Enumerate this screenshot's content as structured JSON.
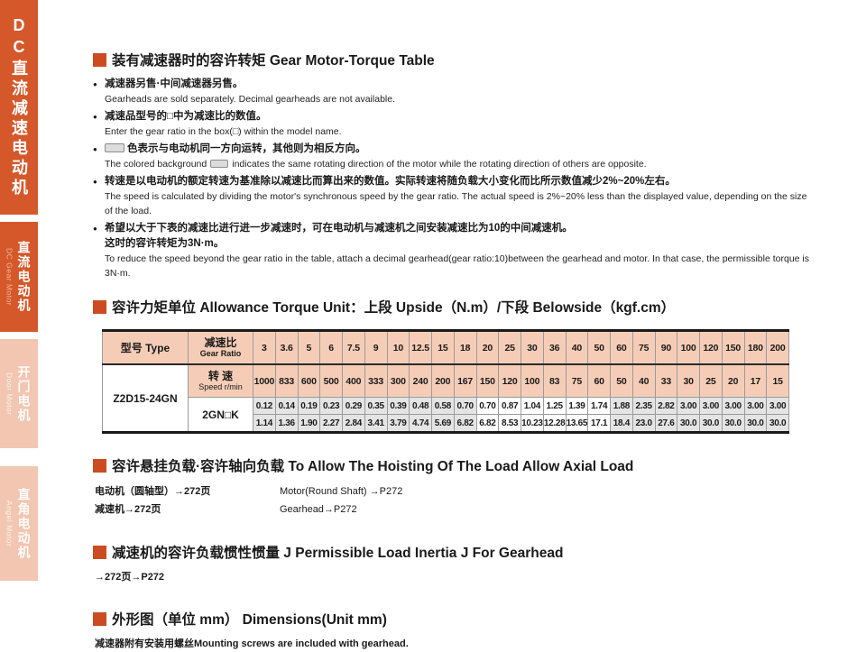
{
  "colors": {
    "accent": "#cc4b21",
    "sidebar_dark": "#d4582a",
    "sidebar_light": "#f2c6b1",
    "table_header_pink": "#f5cdb7",
    "same_direction_cell_gray": "#e4e4e4"
  },
  "sidebar": {
    "main_tab": "DC直流减速电动机",
    "tabs": [
      {
        "cn": "直流电动机",
        "en": "DC Gear Motor",
        "active": true
      },
      {
        "cn": "开门电机",
        "en": "Door Motor",
        "active": false
      },
      {
        "cn": "直角电动机",
        "en": "Angel Motor",
        "active": false
      }
    ]
  },
  "sections": {
    "gear_motor_torque": {
      "heading_cn": "装有减速器时的容许转矩",
      "heading_en": " Gear Motor-Torque Table",
      "bullets": [
        {
          "cn": "减速器另售·中间减速器另售。",
          "en": "Gearheads are sold separately. Decimal gearheads are not available."
        },
        {
          "cn": "减速品型号的□中为减速比的数值。",
          "en": "Enter the gear ratio in the box(□) within the model name."
        },
        {
          "cn_after_box": "色表示与电动机同一方向运转，其他则为相反方向。",
          "en_before_box": "The colored background",
          "en_after_box": "indicates the same rotating direction of the motor while the rotating direction of others are opposite."
        },
        {
          "cn": "转速是以电动机的额定转速为基准除以减速比而算出来的数值。实际转速将随负载大小变化而比所示数值减少2%~20%左右。",
          "en": "The speed is calculated by dividing the motor's synchronous speed by the gear ratio. The actual speed is 2%~20% less than the displayed value, depending on the size of the load."
        },
        {
          "cn": "希望以大于下表的减速比进行进一步减速时，可在电动机与减速机之间安装减速比为10的中间减速机。",
          "cn2": "这时的容许转矩为3N·m。",
          "en": "To reduce the speed beyond the gear ratio in the table, attach a decimal gearhead(gear ratio:10)between the gearhead and motor. In that case, the permissible torque is 3N·m."
        }
      ]
    },
    "torque_unit": {
      "heading_cn": "容许力矩单位",
      "heading_rest": " Allowance Torque Unit：上段 Upside（N.m）/下段 Belowside（kgf.cm）"
    },
    "hoisting": {
      "heading_cn": "容许悬挂负载·容许轴向负载",
      "heading_en": " To Allow The Hoisting Of The Load Allow Axial Load",
      "rows": [
        {
          "cn": "电动机（圆轴型）→272页",
          "en": "Motor(Round Shaft) →P272"
        },
        {
          "cn": "减速机→272页",
          "en": "Gearhead→P272"
        }
      ]
    },
    "inertia": {
      "heading_cn": "减速机的容许负载惯性惯量 J",
      "heading_en": "  Permissible Load Inertia J For Gearhead",
      "ref": "→272页→P272"
    },
    "dimensions": {
      "heading_cn": "外形图（单位 mm）",
      "heading_en": " Dimensions(Unit mm)",
      "note": "减速器附有安装用螺丝Mounting screws are included with gearhead."
    }
  },
  "table": {
    "type_header": "型号 Type",
    "ratio_label_cn": "减速比",
    "ratio_label_en": "Gear Ratio",
    "speed_label_cn": "转 速",
    "speed_label_en": "Speed r/min",
    "model": "Z2D15-24GN",
    "gearhead_label": "2GN□K",
    "gear_ratios": [
      "3",
      "3.6",
      "5",
      "6",
      "7.5",
      "9",
      "10",
      "12.5",
      "15",
      "18",
      "20",
      "25",
      "30",
      "36",
      "40",
      "50",
      "60",
      "75",
      "90",
      "100",
      "120",
      "150",
      "180",
      "200"
    ],
    "speeds": [
      "1000",
      "833",
      "600",
      "500",
      "400",
      "333",
      "300",
      "240",
      "200",
      "167",
      "150",
      "120",
      "100",
      "83",
      "75",
      "60",
      "50",
      "40",
      "33",
      "30",
      "25",
      "20",
      "17",
      "15"
    ],
    "torque_nm": [
      "0.12",
      "0.14",
      "0.19",
      "0.23",
      "0.29",
      "0.35",
      "0.39",
      "0.48",
      "0.58",
      "0.70",
      "0.70",
      "0.87",
      "1.04",
      "1.25",
      "1.39",
      "1.74",
      "1.88",
      "2.35",
      "2.82",
      "3.00",
      "3.00",
      "3.00",
      "3.00",
      "3.00"
    ],
    "torque_kgfcm": [
      "1.14",
      "1.36",
      "1.90",
      "2.27",
      "2.84",
      "3.41",
      "3.79",
      "4.74",
      "5.69",
      "6.82",
      "6.82",
      "8.53",
      "10.23",
      "12.28",
      "13.65",
      "17.1",
      "18.4",
      "23.0",
      "27.6",
      "30.0",
      "30.0",
      "30.0",
      "30.0",
      "30.0"
    ],
    "same_direction_flags": [
      true,
      true,
      true,
      true,
      true,
      true,
      true,
      true,
      true,
      true,
      false,
      false,
      false,
      false,
      false,
      false,
      true,
      true,
      true,
      true,
      true,
      true,
      true,
      true
    ]
  }
}
